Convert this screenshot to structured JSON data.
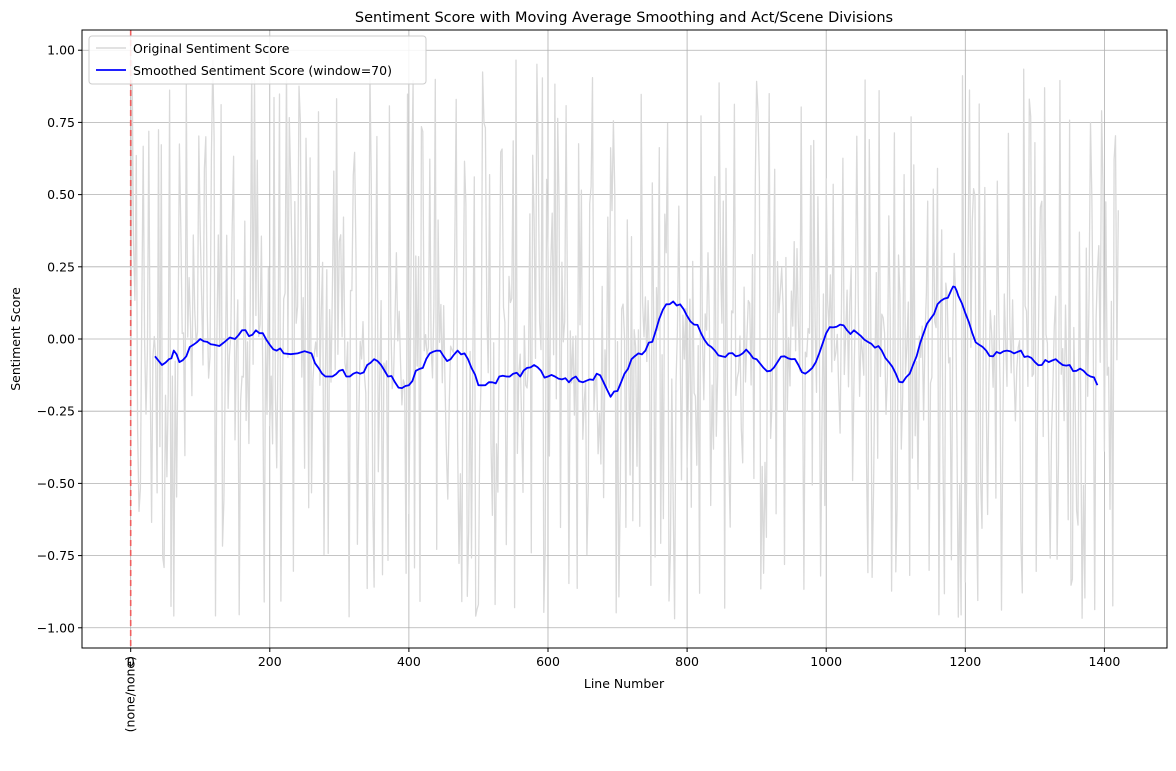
{
  "chart_data": {
    "type": "line",
    "title": "Sentiment Score with Moving Average Smoothing and Act/Scene Divisions",
    "xlabel": "Line Number",
    "ylabel": "Sentiment Score",
    "xlim": [
      -70,
      1490
    ],
    "ylim": [
      -1.07,
      1.07
    ],
    "x_ticks": [
      0,
      200,
      400,
      600,
      800,
      1000,
      1200,
      1400
    ],
    "x_tick_labels": [
      "0",
      "200",
      "400",
      "600",
      "800",
      "1000",
      "1200",
      "1400"
    ],
    "y_ticks": [
      -1.0,
      -0.75,
      -0.5,
      -0.25,
      0.0,
      0.25,
      0.5,
      0.75,
      1.0
    ],
    "y_tick_labels": [
      "−1.00",
      "−0.75",
      "−0.50",
      "−0.25",
      "0.00",
      "0.25",
      "0.50",
      "0.75",
      "1.00"
    ],
    "grid": true,
    "legend_position": "top-left",
    "series": [
      {
        "name": "Original Sentiment Score",
        "color": "#d9d9d9",
        "x_start": 0,
        "x_end": 1420,
        "value_range": [
          -0.97,
          0.97
        ],
        "note_text_free": ""
      },
      {
        "name": "Smoothed Sentiment Score (window=70)",
        "color": "#0000ff",
        "x": [
          35,
          45,
          55,
          62,
          70,
          80,
          90,
          100,
          110,
          120,
          135,
          150,
          160,
          170,
          180,
          190,
          200,
          210,
          220,
          240,
          260,
          270,
          280,
          290,
          300,
          310,
          320,
          330,
          340,
          350,
          360,
          370,
          380,
          390,
          400,
          410,
          420,
          430,
          440,
          450,
          460,
          470,
          480,
          490,
          500,
          510,
          520,
          530,
          540,
          550,
          560,
          570,
          580,
          590,
          600,
          610,
          620,
          630,
          640,
          650,
          660,
          670,
          680,
          690,
          700,
          710,
          720,
          730,
          740,
          750,
          760,
          770,
          780,
          790,
          800,
          810,
          820,
          830,
          840,
          850,
          860,
          870,
          880,
          890,
          900,
          910,
          920,
          930,
          940,
          950,
          960,
          970,
          980,
          990,
          1000,
          1010,
          1020,
          1030,
          1040,
          1050,
          1060,
          1070,
          1080,
          1090,
          1100,
          1110,
          1120,
          1130,
          1140,
          1150,
          1160,
          1170,
          1180,
          1185,
          1190,
          1200,
          1210,
          1220,
          1230,
          1240,
          1250,
          1260,
          1270,
          1280,
          1290,
          1300,
          1310,
          1320,
          1330,
          1340,
          1350,
          1360,
          1370,
          1380,
          1390
        ],
        "y": [
          -0.06,
          -0.09,
          -0.07,
          -0.04,
          -0.08,
          -0.06,
          -0.02,
          0.0,
          -0.01,
          -0.02,
          -0.01,
          0.0,
          0.03,
          0.01,
          0.03,
          0.02,
          -0.02,
          -0.04,
          -0.05,
          -0.05,
          -0.05,
          -0.1,
          -0.13,
          -0.13,
          -0.11,
          -0.13,
          -0.12,
          -0.12,
          -0.09,
          -0.07,
          -0.09,
          -0.13,
          -0.15,
          -0.17,
          -0.16,
          -0.11,
          -0.1,
          -0.05,
          -0.04,
          -0.06,
          -0.07,
          -0.04,
          -0.05,
          -0.1,
          -0.16,
          -0.16,
          -0.15,
          -0.13,
          -0.13,
          -0.12,
          -0.13,
          -0.1,
          -0.09,
          -0.11,
          -0.13,
          -0.13,
          -0.14,
          -0.15,
          -0.13,
          -0.15,
          -0.14,
          -0.12,
          -0.15,
          -0.2,
          -0.18,
          -0.12,
          -0.07,
          -0.05,
          -0.04,
          -0.01,
          0.07,
          0.12,
          0.13,
          0.12,
          0.08,
          0.05,
          0.02,
          -0.02,
          -0.04,
          -0.06,
          -0.05,
          -0.06,
          -0.05,
          -0.05,
          -0.07,
          -0.1,
          -0.11,
          -0.08,
          -0.06,
          -0.07,
          -0.09,
          -0.12,
          -0.1,
          -0.05,
          0.02,
          0.04,
          0.05,
          0.03,
          0.03,
          0.01,
          -0.01,
          -0.03,
          -0.04,
          -0.08,
          -0.12,
          -0.15,
          -0.12,
          -0.06,
          0.02,
          0.07,
          0.12,
          0.14,
          0.17,
          0.18,
          0.15,
          0.09,
          0.02,
          -0.02,
          -0.04,
          -0.06,
          -0.05,
          -0.04,
          -0.05,
          -0.04,
          -0.06,
          -0.08,
          -0.09,
          -0.08,
          -0.07,
          -0.09,
          -0.09,
          -0.11,
          -0.11,
          -0.13,
          -0.16
        ]
      }
    ],
    "vlines": [
      {
        "x": 0,
        "label": "(none/none)",
        "color": "#f06060"
      }
    ]
  }
}
